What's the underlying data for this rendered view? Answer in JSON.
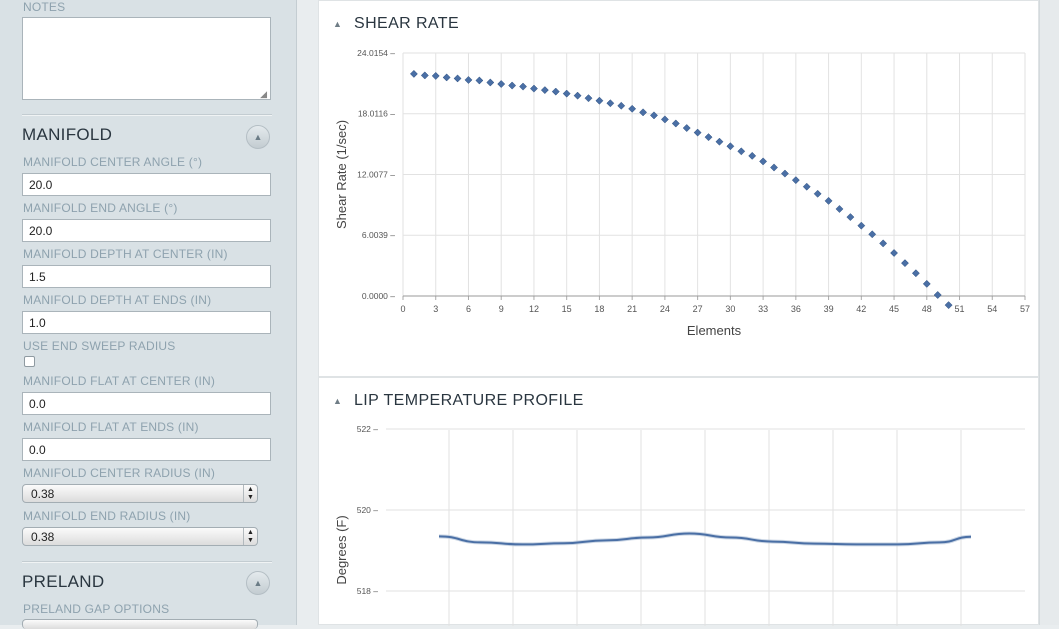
{
  "sidebar": {
    "notes_label": "NOTES",
    "notes_value": "",
    "manifold": {
      "title": "MANIFOLD",
      "fields": [
        {
          "label": "MANIFOLD CENTER ANGLE (°)",
          "value": "20.0"
        },
        {
          "label": "MANIFOLD END ANGLE (°)",
          "value": "20.0"
        },
        {
          "label": "MANIFOLD DEPTH AT CENTER (IN)",
          "value": "1.5"
        },
        {
          "label": "MANIFOLD DEPTH AT ENDS (IN)",
          "value": "1.0"
        }
      ],
      "use_end_sweep_radius": {
        "label": "USE END SWEEP RADIUS",
        "checked": false
      },
      "fields2": [
        {
          "label": "MANIFOLD FLAT AT CENTER (IN)",
          "value": "0.0"
        },
        {
          "label": "MANIFOLD FLAT AT ENDS (IN)",
          "value": "0.0"
        }
      ],
      "selects": [
        {
          "label": "MANIFOLD CENTER RADIUS (IN)",
          "value": "0.38"
        },
        {
          "label": "MANIFOLD END RADIUS (IN)",
          "value": "0.38"
        }
      ]
    },
    "preland": {
      "title": "PRELAND",
      "gap_options_label": "PRELAND GAP OPTIONS"
    }
  },
  "colors": {
    "sidebar_bg": "#d9e1e5",
    "label_color": "#8ea2ae",
    "series_color": "#4a6fa5"
  },
  "chart_data": [
    {
      "type": "scatter",
      "title": "SHEAR RATE",
      "xlabel": "Elements",
      "ylabel": "Shear Rate (1/sec)",
      "xlim": [
        0,
        57
      ],
      "ylim": [
        0,
        24.0154
      ],
      "xticks": [
        "0",
        "3",
        "6",
        "9",
        "12",
        "15",
        "18",
        "21",
        "24",
        "27",
        "30",
        "33",
        "36",
        "39",
        "42",
        "45",
        "48",
        "51",
        "54",
        "57"
      ],
      "yticks": [
        "0.0000",
        "6.0039",
        "12.0077",
        "18.0116",
        "24.0154"
      ],
      "grid": true,
      "marker": "diamond",
      "x": [
        1,
        2,
        3,
        4,
        5,
        6,
        7,
        8,
        9,
        10,
        11,
        12,
        13,
        14,
        15,
        16,
        17,
        18,
        19,
        20,
        21,
        22,
        23,
        24,
        25,
        26,
        27,
        28,
        29,
        30,
        31,
        32,
        33,
        34,
        35,
        36,
        37,
        38,
        39,
        40,
        41,
        42,
        43,
        44,
        45,
        46,
        47,
        48,
        49,
        50
      ],
      "y": [
        21.95,
        21.8,
        21.75,
        21.6,
        21.5,
        21.35,
        21.3,
        21.1,
        20.95,
        20.8,
        20.7,
        20.5,
        20.35,
        20.2,
        20.0,
        19.8,
        19.55,
        19.3,
        19.05,
        18.8,
        18.5,
        18.15,
        17.85,
        17.45,
        17.05,
        16.6,
        16.15,
        15.7,
        15.25,
        14.8,
        14.3,
        13.85,
        13.3,
        12.7,
        12.1,
        11.45,
        10.8,
        10.1,
        9.4,
        8.6,
        7.8,
        6.95,
        6.1,
        5.2,
        4.25,
        3.25,
        2.25,
        1.2,
        0.1,
        -0.9
      ]
    },
    {
      "type": "line",
      "title": "LIP TEMPERATURE PROFILE",
      "xlabel": "",
      "ylabel": "Degrees (F)",
      "ylim": [
        517.25,
        522
      ],
      "yticks": [
        "518",
        "520",
        "522"
      ],
      "grid": true,
      "x": [
        0,
        4,
        8,
        12,
        16,
        20,
        24,
        28,
        32,
        36,
        40,
        44,
        48,
        51
      ],
      "y": [
        519.35,
        519.2,
        519.15,
        519.18,
        519.25,
        519.32,
        519.42,
        519.32,
        519.22,
        519.17,
        519.15,
        519.15,
        519.2,
        519.34
      ]
    }
  ]
}
